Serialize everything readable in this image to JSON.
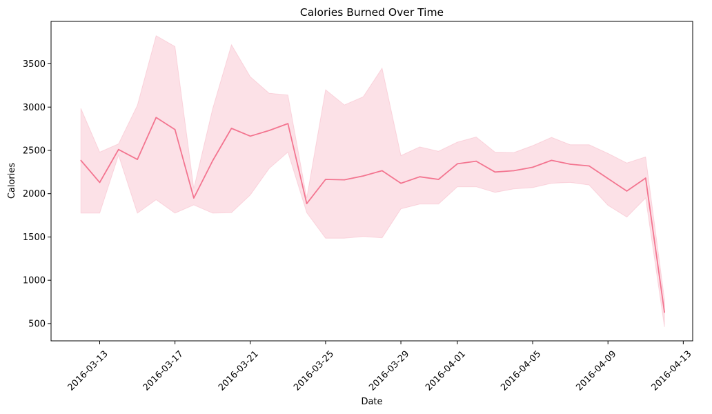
{
  "chart_data": {
    "type": "line",
    "title": "Calories Burned Over Time",
    "xlabel": "Date",
    "ylabel": "Calories",
    "x": [
      "2016-03-12",
      "2016-03-13",
      "2016-03-14",
      "2016-03-15",
      "2016-03-16",
      "2016-03-17",
      "2016-03-18",
      "2016-03-19",
      "2016-03-20",
      "2016-03-21",
      "2016-03-22",
      "2016-03-23",
      "2016-03-24",
      "2016-03-25",
      "2016-03-26",
      "2016-03-27",
      "2016-03-28",
      "2016-03-29",
      "2016-03-30",
      "2016-03-31",
      "2016-04-01",
      "2016-04-02",
      "2016-04-03",
      "2016-04-04",
      "2016-04-05",
      "2016-04-06",
      "2016-04-07",
      "2016-04-08",
      "2016-04-09",
      "2016-04-10",
      "2016-04-11",
      "2016-04-12"
    ],
    "series": [
      {
        "values": [
          2385,
          2130,
          2510,
          2395,
          2880,
          2740,
          1950,
          2380,
          2755,
          2665,
          2730,
          2810,
          1885,
          2165,
          2160,
          2205,
          2265,
          2120,
          2195,
          2165,
          2345,
          2375,
          2250,
          2265,
          2305,
          2385,
          2340,
          2320,
          2175,
          2030,
          2180,
          630
        ],
        "ci_upper": [
          2985,
          2480,
          2575,
          3020,
          3825,
          3700,
          2060,
          2980,
          3720,
          3350,
          3160,
          3140,
          1950,
          3200,
          3025,
          3120,
          3450,
          2440,
          2540,
          2490,
          2595,
          2655,
          2480,
          2475,
          2555,
          2650,
          2565,
          2565,
          2465,
          2355,
          2425,
          780
        ],
        "ci_lower": [
          1775,
          1775,
          2445,
          1775,
          1930,
          1775,
          1870,
          1775,
          1780,
          1985,
          2290,
          2480,
          1780,
          1485,
          1485,
          1505,
          1490,
          1825,
          1880,
          1880,
          2080,
          2080,
          2015,
          2055,
          2070,
          2120,
          2130,
          2100,
          1865,
          1730,
          1950,
          460
        ]
      }
    ],
    "x_ticks": [
      "2016-03-13",
      "2016-03-17",
      "2016-03-21",
      "2016-03-25",
      "2016-03-29",
      "2016-04-01",
      "2016-04-05",
      "2016-04-09",
      "2016-04-13"
    ],
    "y_ticks": [
      500,
      1000,
      1500,
      2000,
      2500,
      3000,
      3500
    ],
    "xlim": [
      "2016-03-10T10:00",
      "2016-04-13T12:00"
    ],
    "ylim": [
      300,
      3990
    ],
    "grid": false,
    "colors": {
      "line": "#f37590",
      "band": "#f37590"
    }
  }
}
